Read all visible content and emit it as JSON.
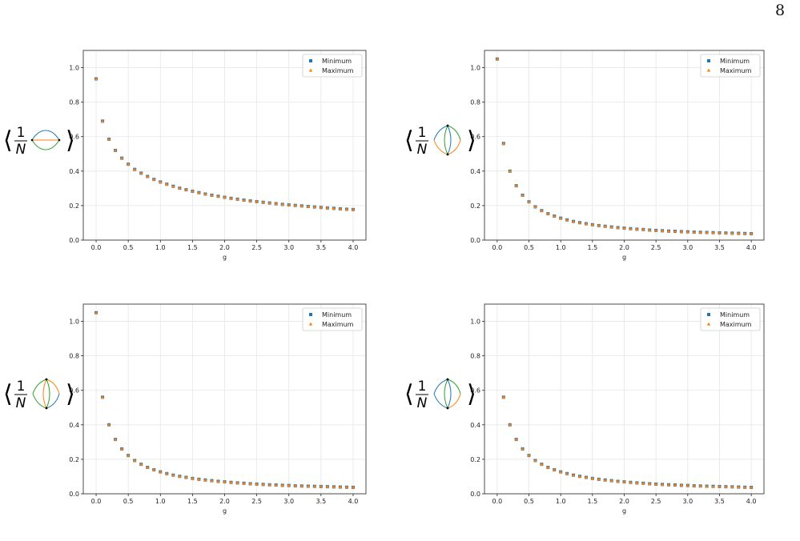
{
  "page": {
    "number": "8"
  },
  "colors": {
    "minimum": "#1f77b4",
    "maximum": "#ff7f0e",
    "grid": "#e6e6e6",
    "axis": "#222222"
  },
  "chart_data": [
    {
      "type": "scatter",
      "y_label_text": "1/N",
      "diagram": "melon",
      "xlabel": "g",
      "xlim": [
        -0.2,
        4.2
      ],
      "ylim": [
        0.0,
        1.1
      ],
      "xticks": [
        "0.0",
        "0.5",
        "1.0",
        "1.5",
        "2.0",
        "2.5",
        "3.0",
        "3.5",
        "4.0"
      ],
      "yticks": [
        "0.0",
        "0.2",
        "0.4",
        "0.6",
        "0.8",
        "1.0"
      ],
      "grid": true,
      "legend_position": "top-right",
      "x": [
        0.0,
        0.1,
        0.2,
        0.3,
        0.4,
        0.5,
        0.6,
        0.7,
        0.8,
        0.9,
        1.0,
        1.1,
        1.2,
        1.3,
        1.4,
        1.5,
        1.6,
        1.7,
        1.8,
        1.9,
        2.0,
        2.1,
        2.2,
        2.3,
        2.4,
        2.5,
        2.6,
        2.7,
        2.8,
        2.9,
        3.0,
        3.1,
        3.2,
        3.3,
        3.4,
        3.5,
        3.6,
        3.7,
        3.8,
        3.9,
        4.0
      ],
      "series": [
        {
          "name": "Minimum",
          "marker": "square",
          "values": [
            0.935,
            0.69,
            0.585,
            0.52,
            0.475,
            0.44,
            0.41,
            0.388,
            0.369,
            0.352,
            0.337,
            0.324,
            0.312,
            0.301,
            0.292,
            0.283,
            0.275,
            0.267,
            0.26,
            0.254,
            0.248,
            0.242,
            0.237,
            0.232,
            0.227,
            0.223,
            0.219,
            0.215,
            0.211,
            0.207,
            0.204,
            0.201,
            0.198,
            0.195,
            0.192,
            0.189,
            0.186,
            0.184,
            0.181,
            0.179,
            0.177
          ]
        },
        {
          "name": "Maximum",
          "marker": "triangle",
          "values": [
            0.935,
            0.69,
            0.585,
            0.52,
            0.475,
            0.44,
            0.41,
            0.388,
            0.369,
            0.352,
            0.337,
            0.324,
            0.312,
            0.301,
            0.292,
            0.283,
            0.275,
            0.267,
            0.26,
            0.254,
            0.248,
            0.242,
            0.237,
            0.232,
            0.227,
            0.223,
            0.219,
            0.215,
            0.211,
            0.207,
            0.204,
            0.201,
            0.198,
            0.195,
            0.192,
            0.189,
            0.186,
            0.184,
            0.181,
            0.179,
            0.177
          ]
        }
      ]
    },
    {
      "type": "scatter",
      "y_label_text": "1/N",
      "diagram": "pillow-a",
      "xlabel": "g",
      "xlim": [
        -0.2,
        4.2
      ],
      "ylim": [
        0.0,
        1.1
      ],
      "xticks": [
        "0.0",
        "0.5",
        "1.0",
        "1.5",
        "2.0",
        "2.5",
        "3.0",
        "3.5",
        "4.0"
      ],
      "yticks": [
        "0.0",
        "0.2",
        "0.4",
        "0.6",
        "0.8",
        "1.0"
      ],
      "grid": true,
      "legend_position": "top-right",
      "x": [
        0.0,
        0.1,
        0.2,
        0.3,
        0.4,
        0.5,
        0.6,
        0.7,
        0.8,
        0.9,
        1.0,
        1.1,
        1.2,
        1.3,
        1.4,
        1.5,
        1.6,
        1.7,
        1.8,
        1.9,
        2.0,
        2.1,
        2.2,
        2.3,
        2.4,
        2.5,
        2.6,
        2.7,
        2.8,
        2.9,
        3.0,
        3.1,
        3.2,
        3.3,
        3.4,
        3.5,
        3.6,
        3.7,
        3.8,
        3.9,
        4.0
      ],
      "series": [
        {
          "name": "Minimum",
          "marker": "square",
          "values": [
            1.05,
            0.56,
            0.4,
            0.315,
            0.26,
            0.222,
            0.193,
            0.171,
            0.153,
            0.139,
            0.127,
            0.117,
            0.108,
            0.101,
            0.095,
            0.089,
            0.084,
            0.08,
            0.076,
            0.072,
            0.069,
            0.066,
            0.063,
            0.061,
            0.058,
            0.056,
            0.054,
            0.052,
            0.051,
            0.049,
            0.048,
            0.046,
            0.045,
            0.044,
            0.043,
            0.042,
            0.041,
            0.04,
            0.039,
            0.038,
            0.037
          ]
        },
        {
          "name": "Maximum",
          "marker": "triangle",
          "values": [
            1.05,
            0.56,
            0.4,
            0.315,
            0.26,
            0.222,
            0.193,
            0.171,
            0.153,
            0.139,
            0.127,
            0.117,
            0.108,
            0.101,
            0.095,
            0.089,
            0.084,
            0.08,
            0.076,
            0.072,
            0.069,
            0.066,
            0.063,
            0.061,
            0.058,
            0.056,
            0.054,
            0.052,
            0.051,
            0.049,
            0.048,
            0.046,
            0.045,
            0.044,
            0.043,
            0.042,
            0.041,
            0.04,
            0.039,
            0.038,
            0.037
          ]
        }
      ]
    },
    {
      "type": "scatter",
      "y_label_text": "1/N",
      "diagram": "pillow-b",
      "xlabel": "g",
      "xlim": [
        -0.2,
        4.2
      ],
      "ylim": [
        0.0,
        1.1
      ],
      "xticks": [
        "0.0",
        "0.5",
        "1.0",
        "1.5",
        "2.0",
        "2.5",
        "3.0",
        "3.5",
        "4.0"
      ],
      "yticks": [
        "0.0",
        "0.2",
        "0.4",
        "0.6",
        "0.8",
        "1.0"
      ],
      "grid": true,
      "legend_position": "top-right",
      "x": [
        0.0,
        0.1,
        0.2,
        0.3,
        0.4,
        0.5,
        0.6,
        0.7,
        0.8,
        0.9,
        1.0,
        1.1,
        1.2,
        1.3,
        1.4,
        1.5,
        1.6,
        1.7,
        1.8,
        1.9,
        2.0,
        2.1,
        2.2,
        2.3,
        2.4,
        2.5,
        2.6,
        2.7,
        2.8,
        2.9,
        3.0,
        3.1,
        3.2,
        3.3,
        3.4,
        3.5,
        3.6,
        3.7,
        3.8,
        3.9,
        4.0
      ],
      "series": [
        {
          "name": "Minimum",
          "marker": "square",
          "values": [
            1.05,
            0.56,
            0.4,
            0.315,
            0.26,
            0.222,
            0.193,
            0.171,
            0.153,
            0.139,
            0.127,
            0.117,
            0.108,
            0.101,
            0.095,
            0.089,
            0.084,
            0.08,
            0.076,
            0.072,
            0.069,
            0.066,
            0.063,
            0.061,
            0.058,
            0.056,
            0.054,
            0.052,
            0.051,
            0.049,
            0.048,
            0.046,
            0.045,
            0.044,
            0.043,
            0.042,
            0.041,
            0.04,
            0.039,
            0.038,
            0.037
          ]
        },
        {
          "name": "Maximum",
          "marker": "triangle",
          "values": [
            1.05,
            0.56,
            0.4,
            0.315,
            0.26,
            0.222,
            0.193,
            0.171,
            0.153,
            0.139,
            0.127,
            0.117,
            0.108,
            0.101,
            0.095,
            0.089,
            0.084,
            0.08,
            0.076,
            0.072,
            0.069,
            0.066,
            0.063,
            0.061,
            0.058,
            0.056,
            0.054,
            0.052,
            0.051,
            0.049,
            0.048,
            0.046,
            0.045,
            0.044,
            0.043,
            0.042,
            0.041,
            0.04,
            0.039,
            0.038,
            0.037
          ]
        }
      ]
    },
    {
      "type": "scatter",
      "y_label_text": "1/N",
      "diagram": "pillow-c",
      "xlabel": "g",
      "xlim": [
        -0.2,
        4.2
      ],
      "ylim": [
        0.0,
        1.1
      ],
      "xticks": [
        "0.0",
        "0.5",
        "1.0",
        "1.5",
        "2.0",
        "2.5",
        "3.0",
        "3.5",
        "4.0"
      ],
      "yticks": [
        "0.0",
        "0.2",
        "0.4",
        "0.6",
        "0.8",
        "1.0"
      ],
      "grid": true,
      "legend_position": "top-right",
      "x": [
        0.1,
        0.2,
        0.3,
        0.4,
        0.5,
        0.6,
        0.7,
        0.8,
        0.9,
        1.0,
        1.1,
        1.2,
        1.3,
        1.4,
        1.5,
        1.6,
        1.7,
        1.8,
        1.9,
        2.0,
        2.1,
        2.2,
        2.3,
        2.4,
        2.5,
        2.6,
        2.7,
        2.8,
        2.9,
        3.0,
        3.1,
        3.2,
        3.3,
        3.4,
        3.5,
        3.6,
        3.7,
        3.8,
        3.9,
        4.0
      ],
      "series": [
        {
          "name": "Minimum",
          "marker": "square",
          "values": [
            0.56,
            0.4,
            0.315,
            0.26,
            0.222,
            0.193,
            0.171,
            0.153,
            0.139,
            0.127,
            0.117,
            0.108,
            0.101,
            0.095,
            0.089,
            0.084,
            0.08,
            0.076,
            0.072,
            0.069,
            0.066,
            0.063,
            0.061,
            0.058,
            0.056,
            0.054,
            0.052,
            0.051,
            0.049,
            0.048,
            0.046,
            0.045,
            0.044,
            0.043,
            0.042,
            0.041,
            0.04,
            0.039,
            0.038,
            0.037
          ]
        },
        {
          "name": "Maximum",
          "marker": "triangle",
          "values": [
            0.56,
            0.4,
            0.315,
            0.26,
            0.222,
            0.193,
            0.171,
            0.153,
            0.139,
            0.127,
            0.117,
            0.108,
            0.101,
            0.095,
            0.089,
            0.084,
            0.08,
            0.076,
            0.072,
            0.069,
            0.066,
            0.063,
            0.061,
            0.058,
            0.056,
            0.054,
            0.052,
            0.051,
            0.049,
            0.048,
            0.046,
            0.045,
            0.044,
            0.043,
            0.042,
            0.041,
            0.04,
            0.039,
            0.038,
            0.037
          ]
        }
      ]
    }
  ]
}
